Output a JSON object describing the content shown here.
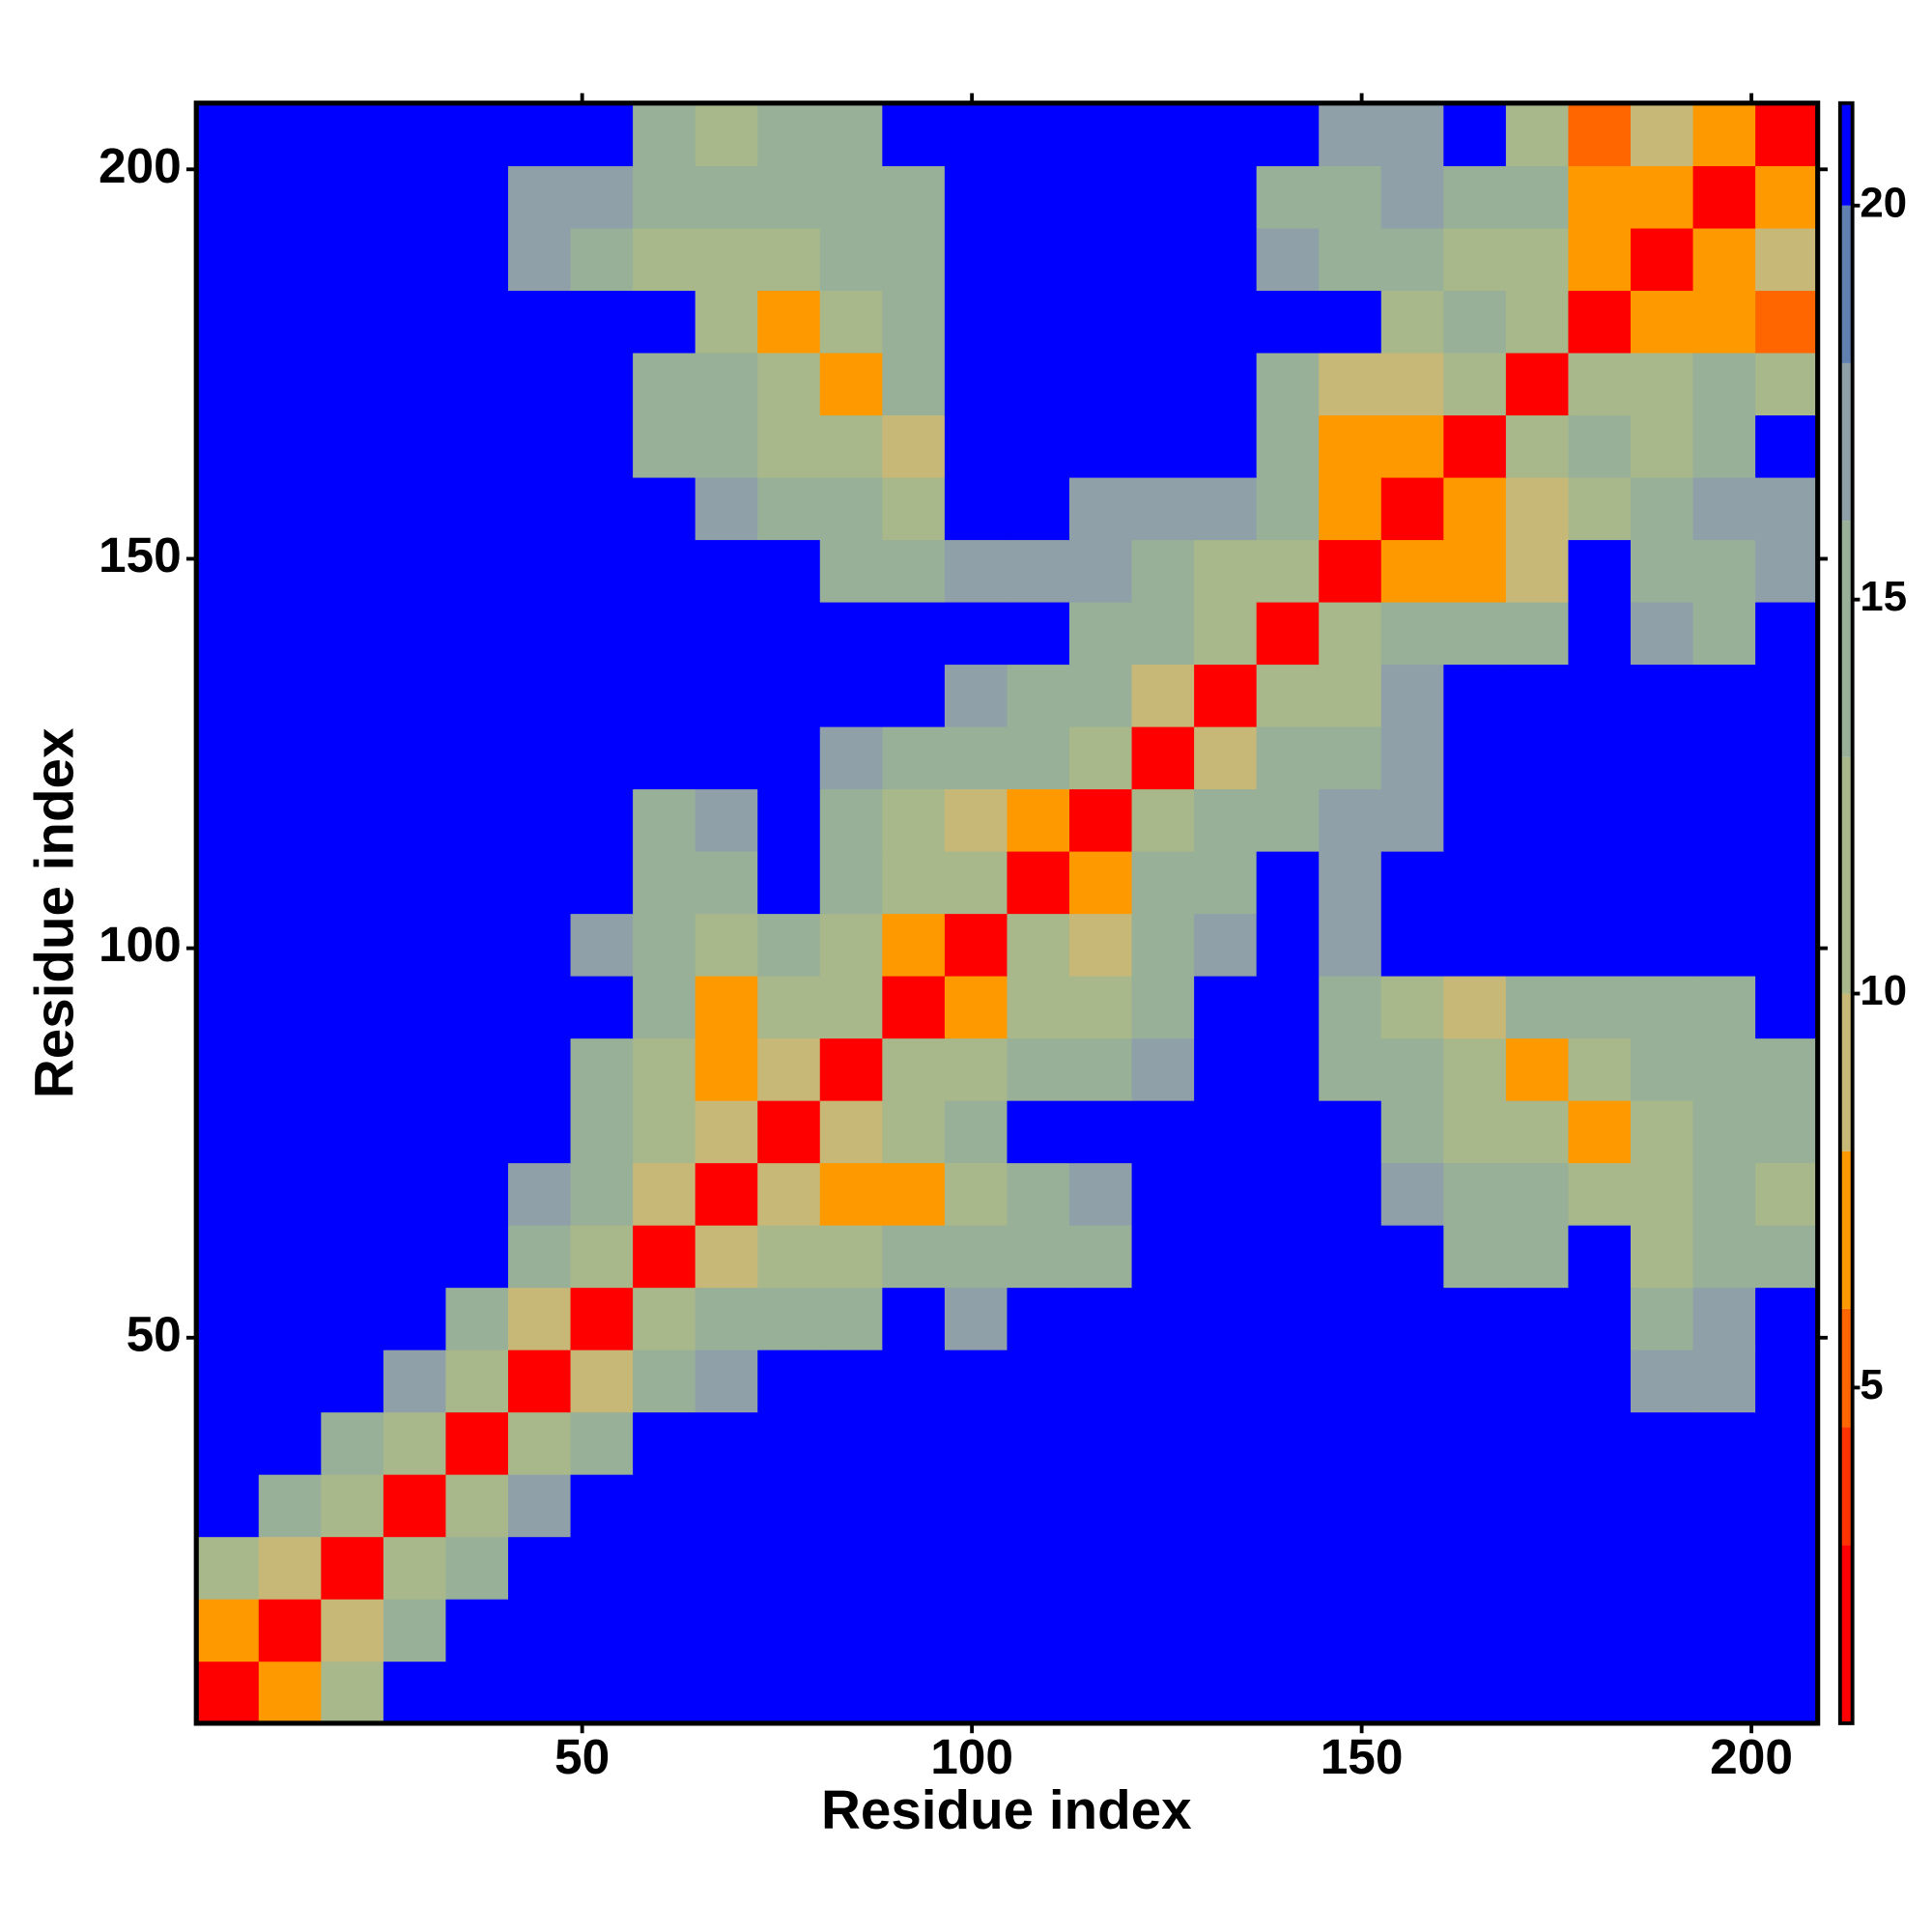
{
  "chart_data": {
    "type": "heatmap",
    "xlabel": "Residue index",
    "ylabel": "Residue index",
    "xbins": [
      0.5,
      8.5,
      16.5,
      24.5,
      32.5,
      40.5,
      48.5,
      56.5,
      64.5,
      72.5,
      80.5,
      88.5,
      96.5,
      104.5,
      112.5,
      120.5,
      128.5,
      136.5,
      144.5,
      152.5,
      160.5,
      168.5,
      176.5,
      184.5,
      192.5,
      200.5,
      208.5
    ],
    "ybins": [
      0.5,
      8.5,
      16.5,
      24.5,
      32.5,
      40.5,
      48.5,
      56.5,
      64.5,
      72.5,
      80.5,
      88.5,
      96.5,
      104.5,
      112.5,
      120.5,
      128.5,
      136.5,
      144.5,
      152.5,
      160.5,
      168.5,
      176.5,
      184.5,
      192.5,
      200.5,
      208.5
    ],
    "xlim": [
      0.5,
      208.5
    ],
    "ylim": [
      0.5,
      208.5
    ],
    "xticks": [
      50,
      100,
      150,
      200
    ],
    "yticks": [
      50,
      100,
      150,
      200
    ],
    "z": [
      [
        2,
        7,
        12,
        21,
        21,
        21,
        21,
        21,
        21,
        21,
        21,
        21,
        21,
        21,
        21,
        21,
        21,
        21,
        21,
        21,
        21,
        21,
        21,
        21,
        21,
        21
      ],
      [
        7,
        2,
        9,
        15,
        21,
        21,
        21,
        21,
        21,
        21,
        21,
        21,
        21,
        21,
        21,
        21,
        21,
        21,
        21,
        21,
        21,
        21,
        21,
        21,
        21,
        21
      ],
      [
        12,
        9,
        2,
        11,
        16,
        21,
        21,
        21,
        21,
        21,
        21,
        21,
        21,
        21,
        21,
        21,
        21,
        21,
        21,
        21,
        21,
        21,
        21,
        21,
        21,
        21
      ],
      [
        21,
        15,
        11,
        2,
        13,
        17,
        21,
        21,
        21,
        21,
        21,
        21,
        21,
        21,
        21,
        21,
        21,
        21,
        21,
        21,
        21,
        21,
        21,
        21,
        21,
        21
      ],
      [
        21,
        21,
        16,
        13,
        2,
        11,
        16,
        21,
        21,
        21,
        21,
        21,
        21,
        21,
        21,
        21,
        21,
        21,
        21,
        21,
        21,
        21,
        21,
        21,
        21,
        21
      ],
      [
        21,
        21,
        21,
        17,
        11,
        2,
        10,
        15,
        17,
        21,
        21,
        21,
        21,
        21,
        21,
        21,
        21,
        21,
        21,
        21,
        21,
        21,
        21,
        18,
        17,
        21
      ],
      [
        21,
        21,
        21,
        21,
        16,
        10,
        2,
        11,
        14,
        16,
        16,
        21,
        17,
        21,
        21,
        21,
        21,
        21,
        21,
        21,
        21,
        21,
        21,
        15,
        17,
        21
      ],
      [
        21,
        21,
        21,
        21,
        21,
        15,
        11,
        2,
        10,
        11,
        13,
        16,
        15,
        15,
        14,
        21,
        21,
        21,
        21,
        21,
        15,
        16,
        21,
        13,
        15,
        16
      ],
      [
        21,
        21,
        21,
        21,
        21,
        17,
        14,
        10,
        2,
        9,
        7,
        7,
        13,
        16,
        17,
        21,
        21,
        21,
        21,
        17,
        16,
        14,
        12,
        11,
        14,
        13
      ],
      [
        21,
        21,
        21,
        21,
        21,
        21,
        16,
        11,
        9,
        2,
        9,
        12,
        15,
        21,
        21,
        21,
        21,
        21,
        21,
        16,
        13,
        12,
        7,
        12,
        14,
        16
      ],
      [
        21,
        21,
        21,
        21,
        21,
        21,
        16,
        13,
        7,
        9,
        2,
        11,
        12,
        16,
        14,
        17,
        21,
        21,
        15,
        14,
        12,
        7,
        13,
        14,
        16,
        15
      ],
      [
        21,
        21,
        21,
        21,
        21,
        21,
        21,
        16,
        7,
        12,
        11,
        2,
        8,
        13,
        12,
        15,
        21,
        21,
        16,
        13,
        9,
        15,
        14,
        15,
        15,
        21
      ],
      [
        21,
        21,
        21,
        21,
        21,
        21,
        17,
        15,
        13,
        15,
        12,
        8,
        2,
        11,
        9,
        15,
        17,
        21,
        18,
        21,
        21,
        21,
        21,
        21,
        21,
        21
      ],
      [
        21,
        21,
        21,
        21,
        21,
        21,
        21,
        15,
        16,
        21,
        16,
        13,
        11,
        2,
        8,
        14,
        16,
        21,
        18,
        21,
        21,
        21,
        21,
        21,
        21,
        21
      ],
      [
        21,
        21,
        21,
        21,
        21,
        21,
        21,
        14,
        17,
        21,
        14,
        12,
        9,
        8,
        2,
        12,
        15,
        16,
        17,
        18,
        21,
        21,
        21,
        21,
        21,
        21
      ],
      [
        21,
        21,
        21,
        21,
        21,
        21,
        21,
        21,
        21,
        21,
        17,
        15,
        15,
        14,
        12,
        2,
        9,
        14,
        16,
        17,
        21,
        21,
        21,
        21,
        21,
        21
      ],
      [
        21,
        21,
        21,
        21,
        21,
        21,
        21,
        21,
        21,
        21,
        21,
        21,
        17,
        16,
        15,
        9,
        2,
        11,
        13,
        18,
        21,
        21,
        21,
        21,
        21,
        21
      ],
      [
        21,
        21,
        21,
        21,
        21,
        21,
        21,
        21,
        21,
        21,
        21,
        21,
        21,
        21,
        16,
        14,
        11,
        2,
        11,
        14,
        15,
        16,
        21,
        17,
        16,
        21
      ],
      [
        21,
        21,
        21,
        21,
        21,
        21,
        21,
        21,
        21,
        21,
        15,
        16,
        18,
        18,
        17,
        16,
        13,
        11,
        2,
        8,
        8,
        9,
        21,
        16,
        16,
        18
      ],
      [
        21,
        21,
        21,
        21,
        21,
        21,
        21,
        21,
        17,
        16,
        14,
        13,
        21,
        21,
        18,
        17,
        18,
        14,
        8,
        2,
        8,
        9,
        13,
        15,
        17,
        17
      ],
      [
        21,
        21,
        21,
        21,
        21,
        21,
        21,
        15,
        16,
        13,
        12,
        9,
        21,
        21,
        21,
        21,
        21,
        15,
        8,
        8,
        2,
        11,
        16,
        13,
        14,
        21
      ],
      [
        21,
        21,
        21,
        21,
        21,
        21,
        21,
        16,
        14,
        12,
        7,
        15,
        21,
        21,
        21,
        21,
        21,
        16,
        9,
        9,
        11,
        2,
        12,
        12,
        14,
        13
      ],
      [
        21,
        21,
        21,
        21,
        21,
        21,
        21,
        21,
        12,
        7,
        13,
        14,
        21,
        21,
        21,
        21,
        21,
        21,
        21,
        13,
        16,
        12,
        2,
        8,
        8,
        6
      ],
      [
        21,
        21,
        21,
        21,
        21,
        18,
        15,
        13,
        11,
        12,
        14,
        15,
        21,
        21,
        21,
        21,
        21,
        17,
        16,
        15,
        13,
        12,
        8,
        2,
        7,
        9
      ],
      [
        21,
        21,
        21,
        21,
        21,
        17,
        17,
        15,
        14,
        14,
        16,
        15,
        21,
        21,
        21,
        21,
        21,
        16,
        16,
        17,
        14,
        14,
        8,
        7,
        2,
        8
      ],
      [
        21,
        21,
        21,
        21,
        21,
        21,
        21,
        16,
        13,
        16,
        15,
        21,
        21,
        21,
        21,
        21,
        21,
        21,
        18,
        17,
        21,
        13,
        6,
        9,
        8,
        2
      ]
    ],
    "colorbar": {
      "lim": [
        0.74,
        21.3
      ],
      "ticks": [
        5,
        10,
        15,
        20
      ],
      "levels": [
        3,
        4.5,
        6,
        8,
        10,
        13,
        16,
        18,
        20
      ],
      "colors": [
        "#ff0000",
        "#ff3300",
        "#ff6600",
        "#ff9900",
        "#c8b878",
        "#a8b88a",
        "#98b098",
        "#90a0a8",
        "#6080b0",
        "#0000ff"
      ]
    }
  }
}
